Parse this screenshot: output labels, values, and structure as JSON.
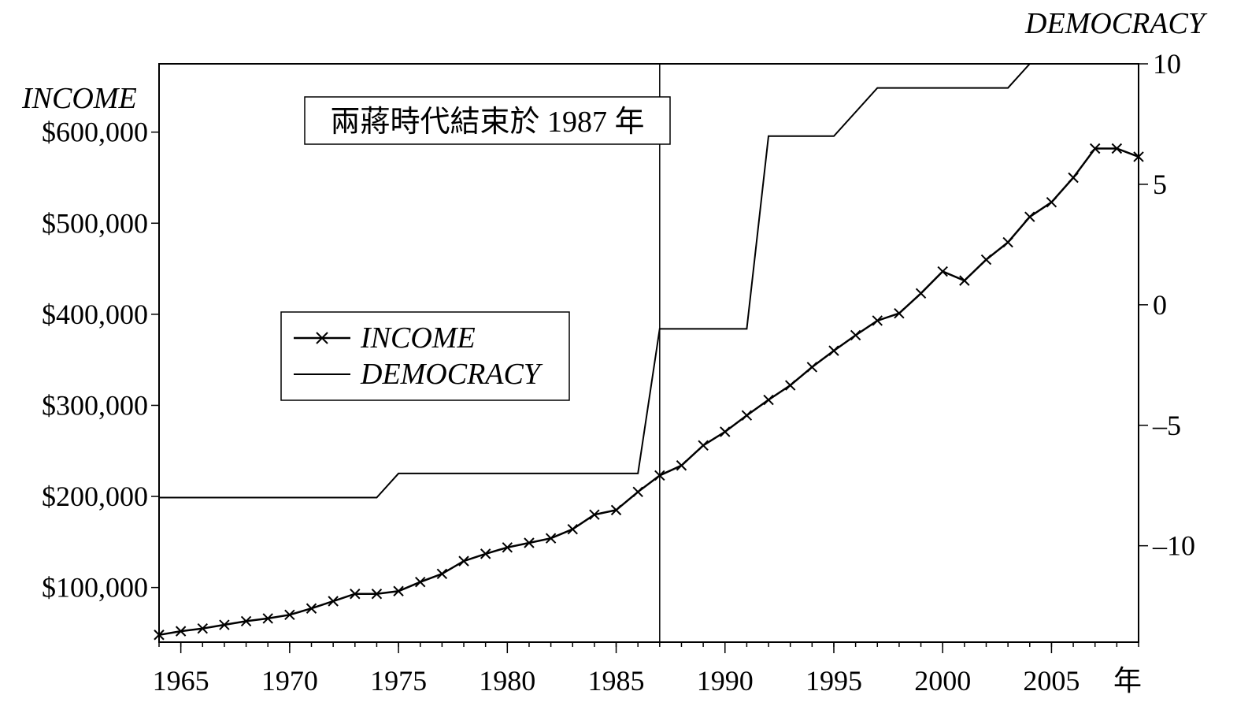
{
  "chart_data": {
    "type": "line",
    "title": "",
    "xlabel": "年",
    "ylabel_left": "INCOME",
    "ylabel_right": "DEMOCRACY",
    "xlim": [
      1964,
      2009
    ],
    "ylim_left": [
      40000,
      675000
    ],
    "ylim_right": [
      -14,
      10
    ],
    "x_ticks": [
      "1965",
      "1970",
      "1975",
      "1980",
      "1985",
      "1990",
      "1995",
      "2000",
      "2005"
    ],
    "y_left_ticks": [
      "$100,000",
      "$200,000",
      "$300,000",
      "$400,000",
      "$500,000",
      "$600,000"
    ],
    "y_right_ticks": [
      "10",
      "5",
      "0",
      "–5",
      "–10"
    ],
    "annotation": "兩蔣時代結束於 1987 年",
    "annotation_x": 1987,
    "legend": {
      "placement": "center-left",
      "entries": [
        "INCOME",
        "DEMOCRACY"
      ]
    },
    "grid": false,
    "series": [
      {
        "name": "INCOME",
        "axis": "left",
        "marker": "x",
        "x": [
          1964,
          1965,
          1966,
          1967,
          1968,
          1969,
          1970,
          1971,
          1972,
          1973,
          1974,
          1975,
          1976,
          1977,
          1978,
          1979,
          1980,
          1981,
          1982,
          1983,
          1984,
          1985,
          1986,
          1987,
          1988,
          1989,
          1990,
          1991,
          1992,
          1993,
          1994,
          1995,
          1996,
          1997,
          1998,
          1999,
          2000,
          2001,
          2002,
          2003,
          2004,
          2005,
          2006,
          2007,
          2008,
          2009
        ],
        "y": [
          48000,
          52000,
          55000,
          59000,
          63000,
          66000,
          70000,
          77000,
          85000,
          93000,
          93000,
          96000,
          106000,
          115000,
          129000,
          137000,
          144000,
          149000,
          154000,
          164000,
          180000,
          185000,
          205000,
          223000,
          234000,
          256000,
          271000,
          289000,
          306000,
          322000,
          342000,
          360000,
          377000,
          393000,
          401000,
          423000,
          447000,
          437000,
          460000,
          479000,
          507000,
          523000,
          550000,
          582000,
          582000,
          573000
        ]
      },
      {
        "name": "DEMOCRACY",
        "axis": "right",
        "marker": "none",
        "x": [
          1964,
          1974,
          1975,
          1986,
          1987,
          1991,
          1992,
          1995,
          1997,
          2003,
          2004,
          2009
        ],
        "y": [
          -8,
          -8,
          -7,
          -7,
          -1,
          -1,
          7,
          7,
          9,
          9,
          10,
          10
        ]
      }
    ]
  }
}
